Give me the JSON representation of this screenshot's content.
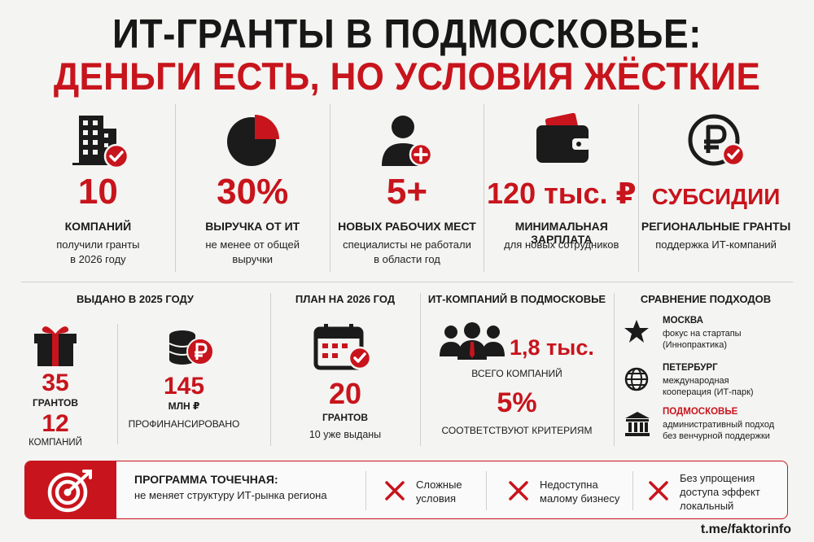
{
  "title": {
    "line1": "ИТ-ГРАНТЫ В ПОДМОСКОВЬЕ:",
    "line2": "ДЕНЬГИ ЕСТЬ, НО УСЛОВИЯ ЖЁСТКИЕ"
  },
  "colors": {
    "accent": "#c8141c",
    "text": "#1b1b1b",
    "background": "#f4f4f2"
  },
  "top_stats": [
    {
      "icon": "building-check-icon",
      "value": "10",
      "label": "КОМПАНИЙ",
      "desc1": "получили гранты",
      "desc2": "в 2026 году"
    },
    {
      "icon": "pie-chart-icon",
      "value": "30%",
      "label": "ВЫРУЧКА ОТ ИТ",
      "desc1": "не менее от общей",
      "desc2": "выручки"
    },
    {
      "icon": "user-plus-icon",
      "value": "5+",
      "label": "НОВЫХ РАБОЧИХ МЕСТ",
      "desc1": "специалисты не работали",
      "desc2": "в области год"
    },
    {
      "icon": "wallet-icon",
      "value": "120 тыс. ₽",
      "label": "МИНИМАЛЬНАЯ ЗАРПЛАТА",
      "desc1": "для новых сотрудников",
      "desc2": ""
    },
    {
      "icon": "ruble-coin-check-icon",
      "value": "СУБСИДИИ",
      "label": "РЕГИОНАЛЬНЫЕ ГРАНТЫ",
      "desc1": "поддержка ИТ-компаний",
      "desc2": ""
    }
  ],
  "issued_2025": {
    "heading": "ВЫДАНО В 2025 ГОДУ",
    "grants_value": "35",
    "grants_label": "ГРАНТОВ",
    "companies_value": "12",
    "companies_label": "КОМПАНИЙ",
    "money_value": "145",
    "money_unit": "МЛН ₽",
    "money_label": "ПРОФИНАНСИРОВАНО"
  },
  "plan_2026": {
    "heading": "ПЛАН НА 2026 ГОД",
    "value": "20",
    "label": "ГРАНТОВ",
    "note": "10 уже выданы"
  },
  "it_companies": {
    "heading": "ИТ-КОМПАНИЙ В ПОДМОСКОВЬЕ",
    "total_value": "1,8 тыс.",
    "total_label": "ВСЕГО КОМПАНИЙ",
    "share_value": "5%",
    "share_label": "СООТВЕТСТВУЮТ КРИТЕРИЯМ"
  },
  "comparison": {
    "heading": "СРАВНЕНИЕ ПОДХОДОВ",
    "items": [
      {
        "icon": "star-icon",
        "name": "МОСКВА",
        "line1": "фокус на стартапы",
        "line2": "(Иннопрактика)"
      },
      {
        "icon": "globe-icon",
        "name": "ПЕТЕРБУРГ",
        "line1": "международная",
        "line2": "кооперация (ИТ-парк)"
      },
      {
        "icon": "government-building-icon",
        "name": "ПОДМОСКОВЬЕ",
        "line1": "административный подход",
        "line2": "без венчурной поддержки"
      }
    ]
  },
  "program": {
    "heading": "ПРОГРАММА ТОЧЕЧНАЯ:",
    "text": "не меняет структуру ИТ-рынка региона",
    "cons": [
      {
        "line1": "Сложные",
        "line2": "условия",
        "line3": ""
      },
      {
        "line1": "Недоступна",
        "line2": "малому бизнесу",
        "line3": ""
      },
      {
        "line1": "Без упрощения",
        "line2": "доступа эффект",
        "line3": "локальный"
      }
    ]
  },
  "footer": {
    "source": "t.me/faktorinfo"
  }
}
